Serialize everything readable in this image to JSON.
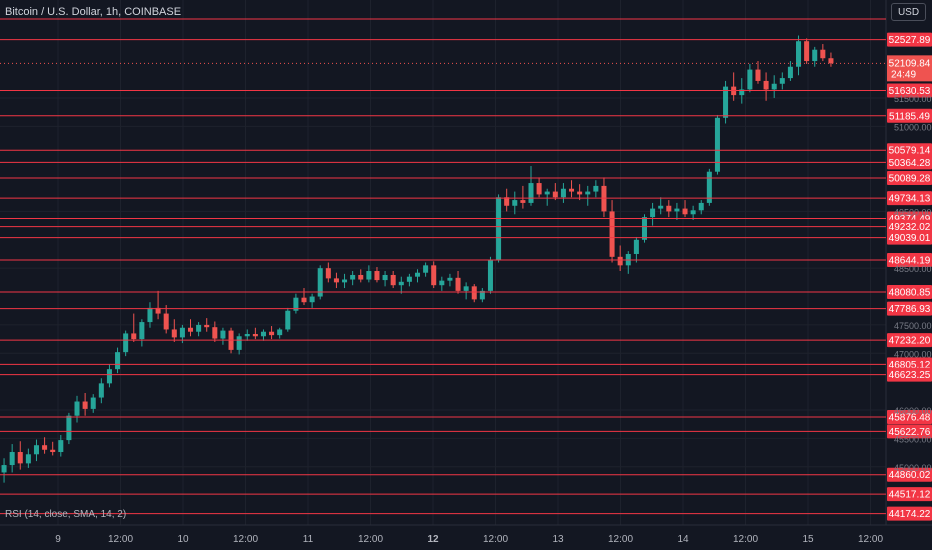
{
  "header": {
    "title": "Bitcoin / U.S. Dollar, 1h, COINBASE",
    "currency_button": "USD",
    "countdown": "24:49"
  },
  "indicator": {
    "label": "RSI (14, close, SMA, 14, 2)"
  },
  "colors": {
    "background": "#131722",
    "up": "#26a69a",
    "down": "#ef5350",
    "level_line": "#f23645",
    "grid": "#1e222d",
    "axis_text": "#b2b5be"
  },
  "chart_data": {
    "type": "candlestick",
    "symbol": "Bitcoin / U.S. Dollar",
    "interval": "1h",
    "exchange": "COINBASE",
    "ylim": [
      44150,
      53050
    ],
    "y_ticks": [
      "51500.00",
      "51000.00",
      "49500.00",
      "48500.00",
      "47500.00",
      "47000.00",
      "46000.00",
      "45500.00",
      "45000.00"
    ],
    "x_ticks": [
      {
        "label": "9",
        "bold": false
      },
      {
        "label": "12:00",
        "bold": false
      },
      {
        "label": "10",
        "bold": false
      },
      {
        "label": "12:00",
        "bold": false
      },
      {
        "label": "11",
        "bold": false
      },
      {
        "label": "12:00",
        "bold": false
      },
      {
        "label": "12",
        "bold": true
      },
      {
        "label": "12:00",
        "bold": false
      },
      {
        "label": "13",
        "bold": false
      },
      {
        "label": "12:00",
        "bold": false
      },
      {
        "label": "14",
        "bold": false
      },
      {
        "label": "12:00",
        "bold": false
      },
      {
        "label": "15",
        "bold": false
      },
      {
        "label": "12:00",
        "bold": false
      }
    ],
    "last_price": "52109.84",
    "levels": [
      "52527.89",
      "51630.53",
      "51185.49",
      "50579.14",
      "50364.28",
      "50089.28",
      "49734.13",
      "49374.49",
      "49232.02",
      "49039.01",
      "48644.19",
      "48080.85",
      "47786.93",
      "47232.20",
      "46805.12",
      "46623.25",
      "45876.48",
      "45622.76",
      "44860.02",
      "44517.12",
      "44174.22"
    ],
    "ohlc": [
      [
        44900,
        45150,
        44720,
        45030
      ],
      [
        45030,
        45400,
        44900,
        45260
      ],
      [
        45260,
        45450,
        44950,
        45060
      ],
      [
        45060,
        45320,
        44980,
        45220
      ],
      [
        45220,
        45480,
        45100,
        45380
      ],
      [
        45380,
        45520,
        45230,
        45300
      ],
      [
        45300,
        45440,
        45200,
        45260
      ],
      [
        45260,
        45560,
        45180,
        45470
      ],
      [
        45470,
        45950,
        45400,
        45900
      ],
      [
        45900,
        46250,
        45780,
        46150
      ],
      [
        46150,
        46300,
        45900,
        46020
      ],
      [
        46020,
        46280,
        45950,
        46220
      ],
      [
        46220,
        46560,
        46120,
        46470
      ],
      [
        46470,
        46800,
        46400,
        46720
      ],
      [
        46720,
        47100,
        46650,
        47020
      ],
      [
        47020,
        47400,
        46950,
        47350
      ],
      [
        47350,
        47700,
        47200,
        47250
      ],
      [
        47250,
        47600,
        47120,
        47550
      ],
      [
        47550,
        47900,
        47450,
        47800
      ],
      [
        47800,
        48100,
        47600,
        47700
      ],
      [
        47700,
        47850,
        47350,
        47420
      ],
      [
        47420,
        47600,
        47200,
        47280
      ],
      [
        47280,
        47500,
        47180,
        47450
      ],
      [
        47450,
        47600,
        47300,
        47380
      ],
      [
        47380,
        47550,
        47300,
        47500
      ],
      [
        47500,
        47620,
        47380,
        47460
      ],
      [
        47460,
        47560,
        47200,
        47260
      ],
      [
        47260,
        47450,
        47150,
        47400
      ],
      [
        47400,
        47450,
        47000,
        47060
      ],
      [
        47060,
        47350,
        46980,
        47300
      ],
      [
        47300,
        47420,
        47220,
        47340
      ],
      [
        47340,
        47450,
        47250,
        47300
      ],
      [
        47300,
        47420,
        47220,
        47380
      ],
      [
        47380,
        47480,
        47250,
        47320
      ],
      [
        47320,
        47450,
        47260,
        47420
      ],
      [
        47420,
        47800,
        47380,
        47750
      ],
      [
        47750,
        48050,
        47700,
        47980
      ],
      [
        47980,
        48150,
        47850,
        47900
      ],
      [
        47900,
        48050,
        47800,
        48000
      ],
      [
        48000,
        48550,
        47950,
        48500
      ],
      [
        48500,
        48600,
        48250,
        48320
      ],
      [
        48320,
        48420,
        48150,
        48250
      ],
      [
        48250,
        48400,
        48150,
        48300
      ],
      [
        48300,
        48450,
        48200,
        48380
      ],
      [
        48380,
        48480,
        48250,
        48300
      ],
      [
        48300,
        48550,
        48250,
        48450
      ],
      [
        48450,
        48520,
        48250,
        48290
      ],
      [
        48290,
        48450,
        48180,
        48380
      ],
      [
        48380,
        48450,
        48150,
        48200
      ],
      [
        48200,
        48350,
        48050,
        48260
      ],
      [
        48260,
        48400,
        48180,
        48350
      ],
      [
        48350,
        48480,
        48250,
        48420
      ],
      [
        48420,
        48600,
        48350,
        48550
      ],
      [
        48550,
        48620,
        48150,
        48200
      ],
      [
        48200,
        48350,
        48100,
        48280
      ],
      [
        48280,
        48400,
        48180,
        48330
      ],
      [
        48330,
        48450,
        48050,
        48100
      ],
      [
        48100,
        48250,
        47950,
        48180
      ],
      [
        48180,
        48220,
        47900,
        47950
      ],
      [
        47950,
        48150,
        47900,
        48100
      ],
      [
        48100,
        48700,
        48050,
        48650
      ],
      [
        48650,
        49800,
        48600,
        49750
      ],
      [
        49750,
        49900,
        49500,
        49600
      ],
      [
        49600,
        49850,
        49450,
        49700
      ],
      [
        49700,
        49950,
        49550,
        49650
      ],
      [
        49650,
        50300,
        49600,
        50000
      ],
      [
        50000,
        50100,
        49750,
        49800
      ],
      [
        49800,
        49900,
        49600,
        49850
      ],
      [
        49850,
        50000,
        49700,
        49750
      ],
      [
        49750,
        50000,
        49650,
        49900
      ],
      [
        49900,
        50050,
        49750,
        49850
      ],
      [
        49850,
        49980,
        49700,
        49800
      ],
      [
        49800,
        49950,
        49600,
        49850
      ],
      [
        49850,
        50050,
        49750,
        49950
      ],
      [
        49950,
        50100,
        49400,
        49500
      ],
      [
        49500,
        49700,
        48600,
        48700
      ],
      [
        48700,
        48900,
        48450,
        48550
      ],
      [
        48550,
        48800,
        48400,
        48750
      ],
      [
        48750,
        49050,
        48600,
        49000
      ],
      [
        49000,
        49450,
        48950,
        49400
      ],
      [
        49400,
        49650,
        49250,
        49550
      ],
      [
        49550,
        49750,
        49450,
        49600
      ],
      [
        49600,
        49700,
        49400,
        49500
      ],
      [
        49500,
        49650,
        49350,
        49550
      ],
      [
        49550,
        49700,
        49400,
        49450
      ],
      [
        49450,
        49600,
        49350,
        49520
      ],
      [
        49520,
        49700,
        49450,
        49650
      ],
      [
        49650,
        50250,
        49600,
        50200
      ],
      [
        50200,
        51200,
        50150,
        51150
      ],
      [
        51150,
        51800,
        51050,
        51700
      ],
      [
        51700,
        51950,
        51450,
        51550
      ],
      [
        51550,
        51850,
        51400,
        51650
      ],
      [
        51650,
        52100,
        51600,
        52000
      ],
      [
        52000,
        52150,
        51750,
        51800
      ],
      [
        51800,
        51950,
        51450,
        51650
      ],
      [
        51650,
        51900,
        51500,
        51750
      ],
      [
        51750,
        51950,
        51650,
        51850
      ],
      [
        51850,
        52150,
        51800,
        52050
      ],
      [
        52050,
        52600,
        51900,
        52500
      ],
      [
        52500,
        52550,
        52100,
        52150
      ],
      [
        52150,
        52400,
        52050,
        52350
      ],
      [
        52350,
        52450,
        52150,
        52200
      ],
      [
        52200,
        52300,
        52050,
        52110
      ]
    ]
  }
}
